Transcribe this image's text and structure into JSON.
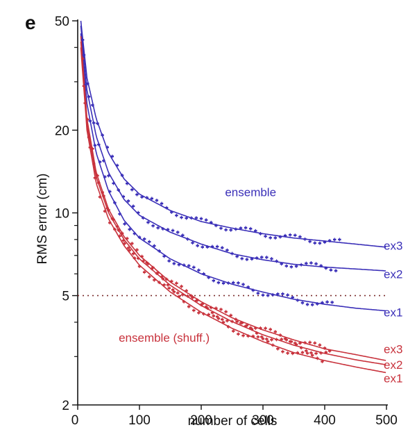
{
  "panel_label": "e",
  "colors": {
    "ensemble": "#3a2fb8",
    "shuffled": "#c8323c",
    "reference": "#7a2b2b",
    "axis": "#111111"
  },
  "chart_data": {
    "type": "line",
    "title": "",
    "xlabel": "number of cells",
    "ylabel": "RMS error (cm)",
    "xlim": [
      0,
      500
    ],
    "ylim": [
      2,
      50
    ],
    "yscale": "log",
    "xticks": [
      0,
      100,
      200,
      300,
      400,
      500
    ],
    "yticks_labeled": [
      2,
      5,
      10,
      20,
      50
    ],
    "yticks_minor": [
      3,
      4,
      6,
      7,
      8,
      9,
      30,
      40
    ],
    "grid": false,
    "reference_line": {
      "y": 5,
      "style": "dotted"
    },
    "annotations": [
      {
        "text": "ensemble",
        "group": "ensemble",
        "x": 280,
        "y": 11.5
      },
      {
        "text": "ensemble (shuff.)",
        "group": "shuffled",
        "x": 140,
        "y": 3.4
      }
    ],
    "series": [
      {
        "name": "ex3",
        "group": "ensemble",
        "x": [
          5,
          15,
          30,
          50,
          75,
          100,
          150,
          200,
          250,
          300,
          350,
          400,
          450,
          500
        ],
        "y": [
          50,
          31,
          22,
          16.5,
          13.3,
          11.7,
          10.2,
          9.3,
          8.8,
          8.4,
          8.1,
          7.9,
          7.7,
          7.5
        ],
        "label_y": 7.6
      },
      {
        "name": "ex2",
        "group": "ensemble",
        "x": [
          5,
          15,
          30,
          50,
          75,
          100,
          150,
          200,
          250,
          300,
          350,
          400,
          450,
          500
        ],
        "y": [
          48,
          28,
          19,
          14,
          11.2,
          9.8,
          8.5,
          7.7,
          7.1,
          6.75,
          6.5,
          6.35,
          6.25,
          6.15
        ],
        "label_y": 6.0
      },
      {
        "name": "ex1",
        "group": "ensemble",
        "x": [
          5,
          15,
          30,
          50,
          75,
          100,
          150,
          200,
          250,
          300,
          350,
          400,
          450,
          500
        ],
        "y": [
          45,
          25,
          16.5,
          12,
          9.4,
          8.1,
          6.8,
          6.0,
          5.5,
          5.15,
          4.85,
          4.65,
          4.5,
          4.4
        ],
        "label_y": 4.35
      },
      {
        "name": "ex3",
        "group": "shuffled",
        "x": [
          5,
          15,
          30,
          50,
          75,
          100,
          150,
          200,
          250,
          300,
          350,
          400,
          450,
          500
        ],
        "y": [
          44,
          22,
          14,
          10.3,
          8.2,
          7.0,
          5.6,
          4.75,
          4.15,
          3.75,
          3.45,
          3.2,
          3.05,
          2.9
        ],
        "label_y": 3.2
      },
      {
        "name": "ex2",
        "group": "shuffled",
        "x": [
          5,
          15,
          30,
          50,
          75,
          100,
          150,
          200,
          250,
          300,
          350,
          400,
          450,
          500
        ],
        "y": [
          42,
          21,
          13.5,
          10,
          8.0,
          6.8,
          5.45,
          4.6,
          4.02,
          3.6,
          3.3,
          3.08,
          2.92,
          2.8
        ],
        "label_y": 2.8
      },
      {
        "name": "ex1",
        "group": "shuffled",
        "x": [
          5,
          15,
          30,
          50,
          75,
          100,
          150,
          200,
          250,
          300,
          350,
          400,
          450,
          500
        ],
        "y": [
          40,
          20,
          12.8,
          9.5,
          7.6,
          6.45,
          5.15,
          4.35,
          3.8,
          3.4,
          3.1,
          2.9,
          2.75,
          2.62
        ],
        "label_y": 2.5
      }
    ]
  }
}
